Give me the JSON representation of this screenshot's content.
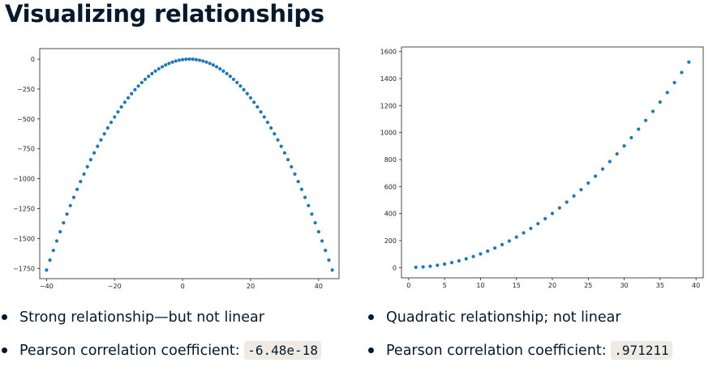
{
  "slide": {
    "title": "Visualizing relationships"
  },
  "left_bullets": [
    {
      "text": "Strong relationship—but not linear"
    },
    {
      "label": "Pearson correlation coefficient:",
      "code": "-6.48e-18"
    }
  ],
  "right_bullets": [
    {
      "text": "Quadratic relationship; not linear"
    },
    {
      "label": "Pearson correlation coefficient:",
      "code": ".971211"
    }
  ],
  "colors": {
    "point": "#1f77b4",
    "axis": "#222222",
    "text": "#05192d",
    "code_bg": "#efebe4"
  },
  "chart_data": [
    {
      "type": "scatter",
      "title": "",
      "xlabel": "",
      "ylabel": "",
      "x_range": [
        -42,
        46
      ],
      "y_range": [
        -1836,
        88
      ],
      "xticks": [
        -40,
        -20,
        0,
        20,
        40
      ],
      "yticks": [
        0,
        -250,
        -500,
        -750,
        -1000,
        -1250,
        -1500,
        -1750
      ],
      "formula": "y = -(x - 2)^2",
      "x": [
        -40,
        -39,
        -38,
        -37,
        -36,
        -35,
        -34,
        -33,
        -32,
        -31,
        -30,
        -29,
        -28,
        -27,
        -26,
        -25,
        -24,
        -23,
        -22,
        -21,
        -20,
        -19,
        -18,
        -17,
        -16,
        -15,
        -14,
        -13,
        -12,
        -11,
        -10,
        -9,
        -8,
        -7,
        -6,
        -5,
        -4,
        -3,
        -2,
        -1,
        0,
        1,
        2,
        3,
        4,
        5,
        6,
        7,
        8,
        9,
        10,
        11,
        12,
        13,
        14,
        15,
        16,
        17,
        18,
        19,
        20,
        21,
        22,
        23,
        24,
        25,
        26,
        27,
        28,
        29,
        30,
        31,
        32,
        33,
        34,
        35,
        36,
        37,
        38,
        39,
        40,
        41,
        42,
        43,
        44
      ],
      "y": [
        -1764,
        -1681,
        -1600,
        -1521,
        -1444,
        -1369,
        -1296,
        -1225,
        -1156,
        -1089,
        -1024,
        -961,
        -900,
        -841,
        -784,
        -729,
        -676,
        -625,
        -576,
        -529,
        -484,
        -441,
        -400,
        -361,
        -324,
        -289,
        -256,
        -225,
        -196,
        -169,
        -144,
        -121,
        -100,
        -81,
        -64,
        -49,
        -36,
        -25,
        -16,
        -9,
        -4,
        -1,
        0,
        -1,
        -4,
        -9,
        -16,
        -25,
        -36,
        -49,
        -64,
        -81,
        -100,
        -121,
        -144,
        -169,
        -196,
        -225,
        -256,
        -289,
        -324,
        -361,
        -400,
        -441,
        -484,
        -529,
        -576,
        -625,
        -676,
        -729,
        -784,
        -841,
        -900,
        -961,
        -1024,
        -1089,
        -1156,
        -1225,
        -1296,
        -1369,
        -1444,
        -1521,
        -1600,
        -1681,
        -1764
      ]
    },
    {
      "type": "scatter",
      "title": "",
      "xlabel": "",
      "ylabel": "",
      "x_range": [
        -1,
        41
      ],
      "y_range": [
        -76,
        1634
      ],
      "xticks": [
        0,
        5,
        10,
        15,
        20,
        25,
        30,
        35,
        40
      ],
      "yticks": [
        0,
        200,
        400,
        600,
        800,
        1000,
        1200,
        1400,
        1600
      ],
      "formula": "y = x^2 + 1",
      "x": [
        1,
        2,
        3,
        4,
        5,
        6,
        7,
        8,
        9,
        10,
        11,
        12,
        13,
        14,
        15,
        16,
        17,
        18,
        19,
        20,
        21,
        22,
        23,
        24,
        25,
        26,
        27,
        28,
        29,
        30,
        31,
        32,
        33,
        34,
        35,
        36,
        37,
        38,
        39
      ],
      "y": [
        2,
        5,
        10,
        17,
        26,
        37,
        50,
        65,
        82,
        101,
        122,
        145,
        170,
        197,
        226,
        257,
        290,
        325,
        362,
        401,
        442,
        485,
        530,
        577,
        626,
        677,
        730,
        785,
        842,
        901,
        962,
        1025,
        1090,
        1157,
        1226,
        1297,
        1370,
        1445,
        1522
      ]
    }
  ]
}
